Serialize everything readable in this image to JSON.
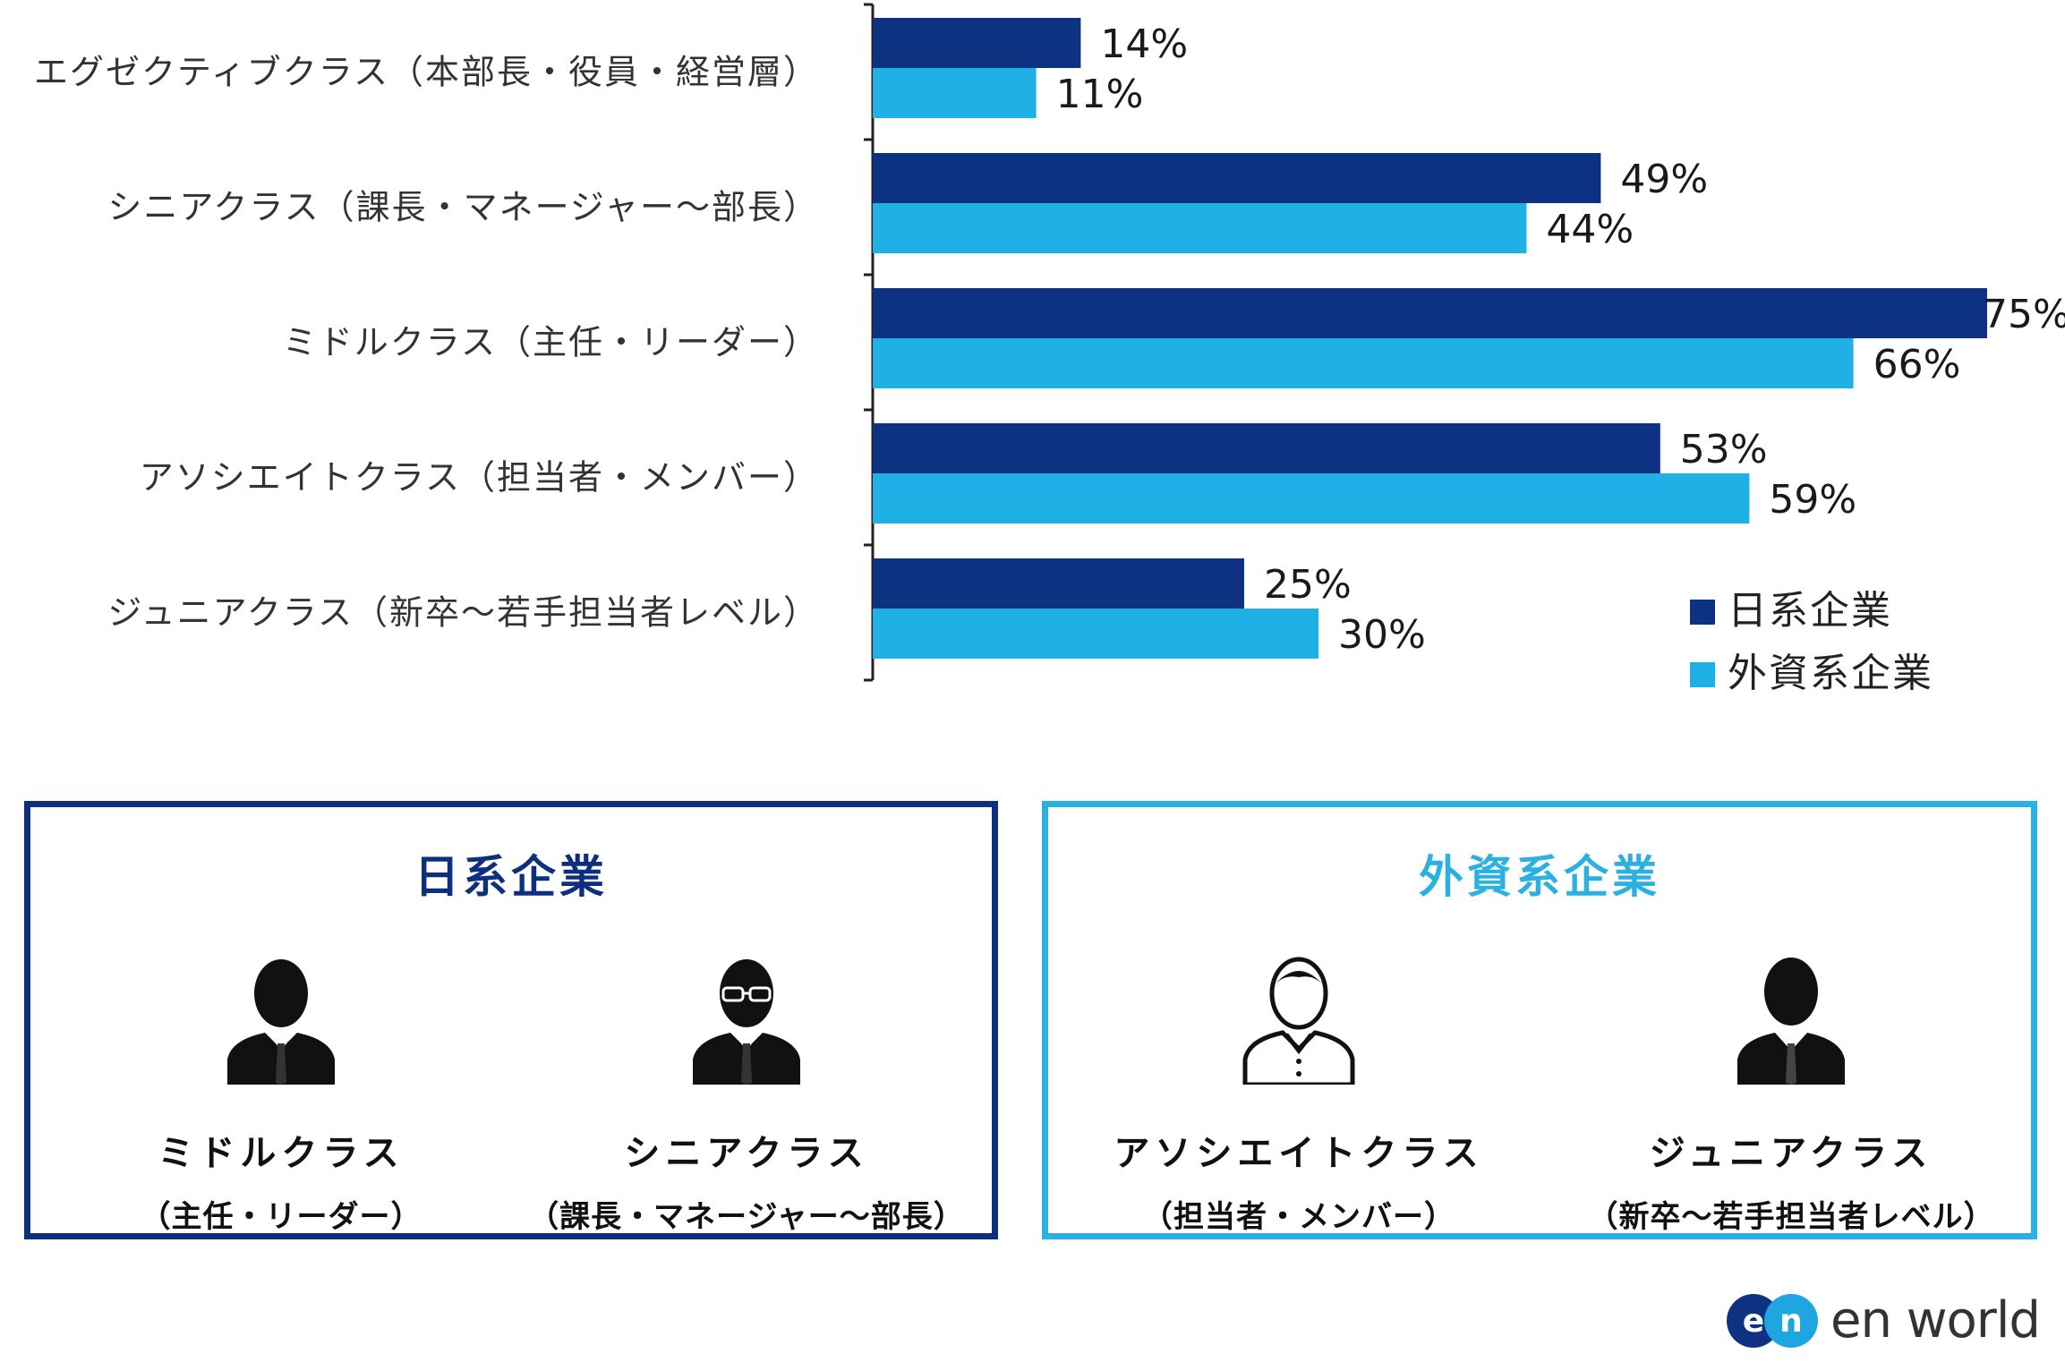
{
  "chart_data": {
    "type": "bar",
    "orientation": "horizontal",
    "categories": [
      "エグゼクティブクラス（本部長・役員・経営層）",
      "シニアクラス（課長・マネージャー～部長）",
      "ミドルクラス（主任・リーダー）",
      "アソシエイトクラス（担当者・メンバー）",
      "ジュニアクラス（新卒～若手担当者レベル）"
    ],
    "series": [
      {
        "name": "日系企業",
        "color": "#0d3282",
        "values": [
          14,
          49,
          75,
          53,
          25
        ]
      },
      {
        "name": "外資系企業",
        "color": "#1fb0e5",
        "values": [
          11,
          44,
          66,
          59,
          30
        ]
      }
    ],
    "value_labels": {
      "日系企業": [
        "14%",
        "49%",
        "75%",
        "53%",
        "25%"
      ],
      "外資系企業": [
        "11%",
        "44%",
        "66%",
        "59%",
        "30%"
      ]
    },
    "xlim": [
      0,
      75
    ],
    "legend_position": "bottom-right",
    "grid": false
  },
  "summary": {
    "japanese": {
      "title": "日系企業",
      "persons": [
        {
          "icon": "businessman-icon",
          "name": "ミドルクラス",
          "sub": "（主任・リーダー）"
        },
        {
          "icon": "businessman-glasses-icon",
          "name": "シニアクラス",
          "sub": "（課長・マネージャー～部長）"
        }
      ]
    },
    "foreign": {
      "title": "外資系企業",
      "persons": [
        {
          "icon": "person-collar-icon",
          "name": "アソシエイトクラス",
          "sub": "（担当者・メンバー）"
        },
        {
          "icon": "person-suit-icon",
          "name": "ジュニアクラス",
          "sub": "（新卒～若手担当者レベル）"
        }
      ]
    }
  },
  "logo": {
    "mark": "en",
    "text": "en world"
  }
}
